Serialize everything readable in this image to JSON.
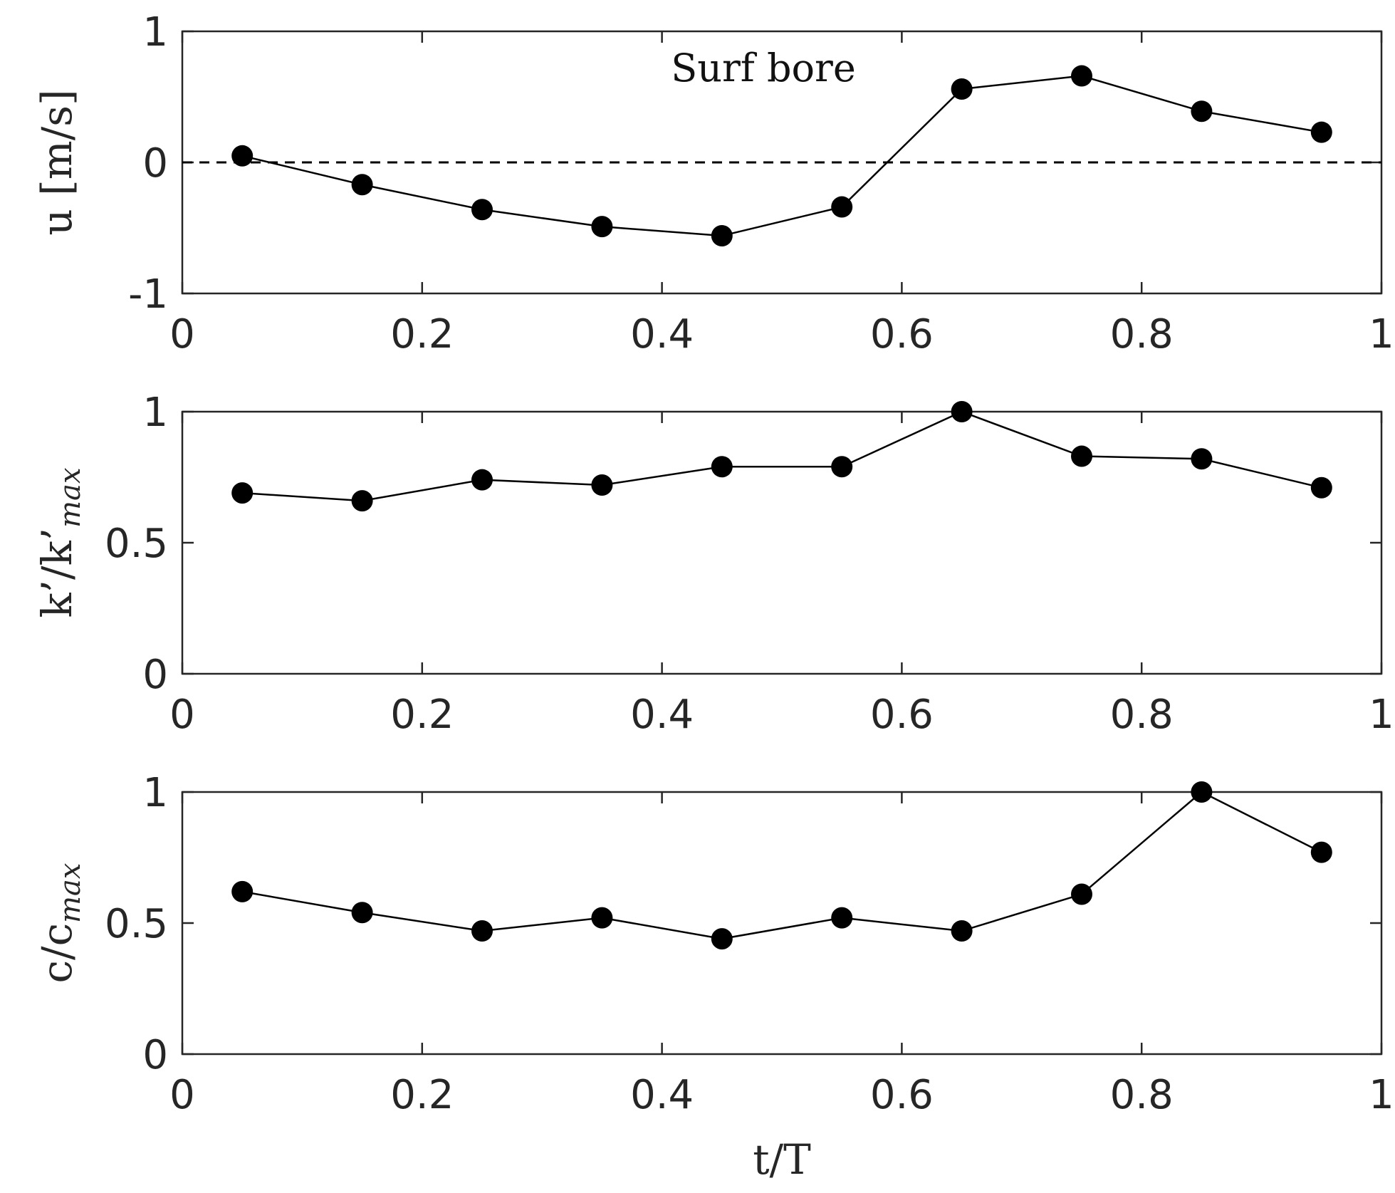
{
  "colors": {
    "ink": "#000000",
    "axis": "#262626",
    "background": "#ffffff"
  },
  "chart_data": [
    {
      "type": "line",
      "annotation": "Surf bore",
      "ylabel": "u [m/s]",
      "xlabel": "",
      "xlim": [
        0,
        1
      ],
      "ylim": [
        -1,
        1
      ],
      "xticks": [
        "0",
        "0.2",
        "0.4",
        "0.6",
        "0.8",
        "1"
      ],
      "yticks": [
        "-1",
        "0",
        "1"
      ],
      "zero_line": true,
      "x": [
        0.05,
        0.15,
        0.25,
        0.35,
        0.45,
        0.55,
        0.65,
        0.75,
        0.85,
        0.95
      ],
      "values": [
        0.05,
        -0.17,
        -0.36,
        -0.49,
        -0.56,
        -0.34,
        0.56,
        0.66,
        0.39,
        0.23
      ]
    },
    {
      "type": "line",
      "ylabel": "k'/k'max",
      "ylabel_main": "k’/k’",
      "ylabel_sub": "max",
      "xlabel": "",
      "xlim": [
        0,
        1
      ],
      "ylim": [
        0,
        1
      ],
      "xticks": [
        "0",
        "0.2",
        "0.4",
        "0.6",
        "0.8",
        "1"
      ],
      "yticks": [
        "0",
        "0.5",
        "1"
      ],
      "x": [
        0.05,
        0.15,
        0.25,
        0.35,
        0.45,
        0.55,
        0.65,
        0.75,
        0.85,
        0.95
      ],
      "values": [
        0.69,
        0.66,
        0.74,
        0.72,
        0.79,
        0.79,
        1.0,
        0.83,
        0.82,
        0.71
      ]
    },
    {
      "type": "line",
      "ylabel": "c/cmax",
      "ylabel_main": "c/c",
      "ylabel_sub": "max",
      "xlabel": "t/T",
      "xlim": [
        0,
        1
      ],
      "ylim": [
        0,
        1
      ],
      "xticks": [
        "0",
        "0.2",
        "0.4",
        "0.6",
        "0.8",
        "1"
      ],
      "yticks": [
        "0",
        "0.5",
        "1"
      ],
      "x": [
        0.05,
        0.15,
        0.25,
        0.35,
        0.45,
        0.55,
        0.65,
        0.75,
        0.85,
        0.95
      ],
      "values": [
        0.62,
        0.54,
        0.47,
        0.52,
        0.44,
        0.52,
        0.47,
        0.61,
        1.0,
        0.77
      ]
    }
  ]
}
